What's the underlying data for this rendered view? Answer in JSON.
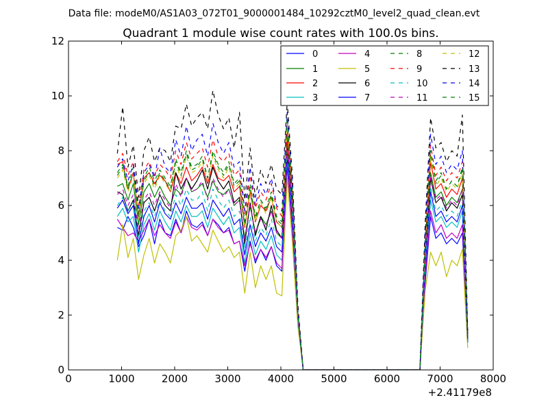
{
  "figure": {
    "suptitle": "Data file: modeM0/AS1A03_072T01_9000001484_10292cztM0_level2_quad_clean.evt"
  },
  "chart_data": {
    "type": "line",
    "title": "Quadrant 1 module wise count rates with 100.0s bins.",
    "xlabel": "",
    "ylabel": "",
    "x_offset_label": "+2.41179e8",
    "xlim": [
      0,
      8000
    ],
    "ylim": [
      0,
      12
    ],
    "xticks": [
      0,
      1000,
      2000,
      3000,
      4000,
      5000,
      6000,
      7000,
      8000
    ],
    "xtick_labels": [
      "0",
      "1000",
      "2000",
      "3000",
      "4000",
      "5000",
      "6000",
      "7000",
      "8000"
    ],
    "yticks": [
      0,
      2,
      4,
      6,
      8,
      10,
      12
    ],
    "ytick_labels": [
      "0",
      "2",
      "4",
      "6",
      "8",
      "10",
      "12"
    ],
    "legend_location": "top-right",
    "legend_columns": 4,
    "x": [
      920,
      1020,
      1120,
      1220,
      1320,
      1420,
      1520,
      1620,
      1720,
      1820,
      1920,
      2020,
      2120,
      2220,
      2320,
      2420,
      2520,
      2620,
      2720,
      2820,
      2920,
      3020,
      3120,
      3220,
      3320,
      3420,
      3520,
      3620,
      3720,
      3820,
      3920,
      4020,
      4120,
      4220,
      4320,
      4420,
      4520,
      4620,
      4720,
      4820,
      4920,
      5020,
      5120,
      5220,
      5320,
      5420,
      5520,
      5620,
      5720,
      5820,
      5920,
      6020,
      6120,
      6220,
      6320,
      6420,
      6520,
      6620,
      6720,
      6820,
      6920,
      7020,
      7120,
      7220,
      7320,
      7420,
      7520
    ],
    "series": [
      {
        "name": "0",
        "color": "#0000ff",
        "dash": false,
        "values": [
          5.2,
          5.1,
          5.6,
          5.2,
          4.5,
          4.9,
          5.5,
          4.6,
          5.5,
          5.0,
          4.9,
          5.5,
          5.0,
          5.8,
          5.3,
          5.2,
          5.4,
          4.9,
          5.5,
          5.3,
          5.0,
          5.2,
          4.6,
          4.7,
          3.6,
          4.7,
          3.9,
          4.4,
          4.0,
          4.5,
          3.8,
          3.6,
          7.5,
          5.0,
          1.8,
          0.0,
          0.0,
          0.0,
          0.0,
          0.0,
          0.0,
          0.0,
          0.0,
          0.0,
          0.0,
          0.0,
          0.0,
          0.0,
          0.0,
          0.0,
          0.0,
          0.0,
          0.0,
          0.0,
          0.0,
          0.0,
          0.0,
          0.0,
          3.2,
          5.6,
          4.8,
          5.0,
          4.6,
          4.8,
          4.6,
          5.0,
          1.0
        ]
      },
      {
        "name": "1",
        "color": "#008000",
        "dash": false,
        "values": [
          6.7,
          6.8,
          6.2,
          6.8,
          5.3,
          6.5,
          6.8,
          6.3,
          6.7,
          6.3,
          6.0,
          6.6,
          6.4,
          7.0,
          6.5,
          6.6,
          6.8,
          6.3,
          6.9,
          6.5,
          6.4,
          6.6,
          6.0,
          6.2,
          4.8,
          6.0,
          5.0,
          5.6,
          5.3,
          5.8,
          5.0,
          4.8,
          8.4,
          6.0,
          2.0,
          0.0,
          0.0,
          0.0,
          0.0,
          0.0,
          0.0,
          0.0,
          0.0,
          0.0,
          0.0,
          0.0,
          0.0,
          0.0,
          0.0,
          0.0,
          0.0,
          0.0,
          0.0,
          0.0,
          0.0,
          0.0,
          0.0,
          0.0,
          4.2,
          7.2,
          6.3,
          6.5,
          6.0,
          6.3,
          6.1,
          6.6,
          1.2
        ]
      },
      {
        "name": "2",
        "color": "#ff0000",
        "dash": false,
        "values": [
          7.5,
          7.6,
          6.6,
          7.2,
          5.6,
          7.0,
          7.2,
          6.8,
          7.1,
          6.9,
          6.5,
          7.2,
          6.8,
          7.4,
          6.9,
          7.1,
          7.4,
          6.8,
          7.5,
          7.0,
          6.9,
          7.1,
          6.5,
          6.7,
          5.2,
          6.5,
          5.4,
          6.0,
          5.8,
          6.3,
          5.4,
          5.2,
          8.6,
          6.2,
          2.1,
          0.0,
          0.0,
          0.0,
          0.0,
          0.0,
          0.0,
          0.0,
          0.0,
          0.0,
          0.0,
          0.0,
          0.0,
          0.0,
          0.0,
          0.0,
          0.0,
          0.0,
          0.0,
          0.0,
          0.0,
          0.0,
          0.0,
          0.0,
          4.4,
          7.6,
          6.6,
          6.8,
          6.3,
          6.6,
          6.4,
          7.0,
          1.2
        ]
      },
      {
        "name": "3",
        "color": "#00bfbf",
        "dash": false,
        "values": [
          5.6,
          5.9,
          5.4,
          5.6,
          4.3,
          5.3,
          5.7,
          5.1,
          5.8,
          5.4,
          5.1,
          5.8,
          5.4,
          6.0,
          5.6,
          5.6,
          5.8,
          5.2,
          5.9,
          5.6,
          5.3,
          5.6,
          5.0,
          5.2,
          3.9,
          5.0,
          4.2,
          4.7,
          4.4,
          4.9,
          4.2,
          4.0,
          7.6,
          5.2,
          1.8,
          0.0,
          0.0,
          0.0,
          0.0,
          0.0,
          0.0,
          0.0,
          0.0,
          0.0,
          0.0,
          0.0,
          0.0,
          0.0,
          0.0,
          0.0,
          0.0,
          0.0,
          0.0,
          0.0,
          0.0,
          0.0,
          0.0,
          0.0,
          3.6,
          6.2,
          5.4,
          5.6,
          5.2,
          5.4,
          5.2,
          5.8,
          1.0
        ]
      },
      {
        "name": "4",
        "color": "#bf00bf",
        "dash": false,
        "values": [
          5.5,
          5.2,
          4.9,
          5.0,
          4.7,
          5.1,
          5.5,
          4.9,
          5.3,
          5.0,
          4.8,
          5.4,
          5.0,
          5.6,
          5.2,
          5.1,
          5.3,
          4.9,
          5.5,
          5.2,
          5.0,
          5.1,
          4.6,
          4.7,
          3.8,
          4.6,
          4.0,
          4.4,
          4.1,
          4.5,
          3.9,
          3.7,
          7.4,
          5.0,
          1.8,
          0.0,
          0.0,
          0.0,
          0.0,
          0.0,
          0.0,
          0.0,
          0.0,
          0.0,
          0.0,
          0.0,
          0.0,
          0.0,
          0.0,
          0.0,
          0.0,
          0.0,
          0.0,
          0.0,
          0.0,
          0.0,
          0.0,
          0.0,
          3.4,
          5.8,
          5.0,
          5.3,
          4.8,
          5.0,
          4.8,
          5.3,
          1.0
        ]
      },
      {
        "name": "5",
        "color": "#bfbf00",
        "dash": false,
        "values": [
          4.0,
          5.3,
          4.1,
          4.8,
          3.3,
          4.2,
          4.8,
          3.9,
          4.6,
          4.3,
          3.9,
          4.9,
          5.1,
          5.6,
          4.7,
          4.9,
          4.6,
          4.3,
          5.1,
          4.7,
          4.3,
          4.5,
          4.1,
          4.3,
          2.8,
          4.3,
          3.0,
          3.8,
          3.3,
          3.8,
          2.8,
          2.7,
          7.0,
          4.6,
          1.6,
          0.0,
          0.0,
          0.0,
          0.0,
          0.0,
          0.0,
          0.0,
          0.0,
          0.0,
          0.0,
          0.0,
          0.0,
          0.0,
          0.0,
          0.0,
          0.0,
          0.0,
          0.0,
          0.0,
          0.0,
          0.0,
          0.0,
          0.0,
          2.9,
          4.3,
          3.8,
          4.3,
          3.4,
          4.0,
          3.8,
          4.4,
          0.8
        ]
      },
      {
        "name": "6",
        "color": "#000000",
        "dash": false,
        "values": [
          6.5,
          6.4,
          5.8,
          6.2,
          4.9,
          6.1,
          6.3,
          5.8,
          6.4,
          6.0,
          5.8,
          7.2,
          6.6,
          7.0,
          6.6,
          6.9,
          7.3,
          6.6,
          7.4,
          6.9,
          6.6,
          6.9,
          6.1,
          6.3,
          4.6,
          6.1,
          4.9,
          5.6,
          5.1,
          6.0,
          5.1,
          4.8,
          8.1,
          6.0,
          2.0,
          0.0,
          0.0,
          0.0,
          0.0,
          0.0,
          0.0,
          0.0,
          0.0,
          0.0,
          0.0,
          0.0,
          0.0,
          0.0,
          0.0,
          0.0,
          0.0,
          0.0,
          0.0,
          0.0,
          0.0,
          0.0,
          0.0,
          0.0,
          4.0,
          7.0,
          6.1,
          6.3,
          5.8,
          6.1,
          5.9,
          6.4,
          1.1
        ]
      },
      {
        "name": "7",
        "color": "#0000ff",
        "dash": false,
        "values": [
          5.9,
          6.2,
          5.7,
          6.0,
          4.6,
          5.6,
          6.0,
          5.4,
          6.1,
          5.7,
          5.5,
          6.1,
          5.7,
          6.3,
          5.9,
          5.9,
          6.1,
          5.5,
          6.2,
          5.9,
          5.6,
          5.9,
          5.3,
          5.5,
          4.2,
          5.3,
          4.5,
          5.0,
          4.7,
          5.2,
          4.5,
          4.3,
          7.8,
          5.4,
          1.9,
          0.0,
          0.0,
          0.0,
          0.0,
          0.0,
          0.0,
          0.0,
          0.0,
          0.0,
          0.0,
          0.0,
          0.0,
          0.0,
          0.0,
          0.0,
          0.0,
          0.0,
          0.0,
          0.0,
          0.0,
          0.0,
          0.0,
          0.0,
          3.8,
          6.5,
          5.6,
          5.8,
          5.4,
          5.6,
          5.4,
          6.0,
          1.0
        ]
      },
      {
        "name": "8",
        "color": "#008000",
        "dash": true,
        "values": [
          7.2,
          7.5,
          6.7,
          7.4,
          5.7,
          7.0,
          7.4,
          6.9,
          7.3,
          7.0,
          6.7,
          7.7,
          7.2,
          8.0,
          7.4,
          7.5,
          7.8,
          7.0,
          8.0,
          7.5,
          7.2,
          7.6,
          6.8,
          7.0,
          5.4,
          6.8,
          5.6,
          6.2,
          5.9,
          6.5,
          5.6,
          5.4,
          8.8,
          6.4,
          2.1,
          0.0,
          0.0,
          0.0,
          0.0,
          0.0,
          0.0,
          0.0,
          0.0,
          0.0,
          0.0,
          0.0,
          0.0,
          0.0,
          0.0,
          0.0,
          0.0,
          0.0,
          0.0,
          0.0,
          0.0,
          0.0,
          0.0,
          0.0,
          4.6,
          7.9,
          6.8,
          7.1,
          6.6,
          6.9,
          6.7,
          7.3,
          1.2
        ]
      },
      {
        "name": "9",
        "color": "#ff0000",
        "dash": true,
        "values": [
          7.6,
          7.9,
          7.1,
          7.6,
          6.0,
          7.3,
          7.6,
          7.1,
          7.5,
          7.3,
          7.0,
          8.0,
          7.5,
          8.3,
          7.7,
          7.9,
          8.1,
          7.4,
          8.4,
          7.8,
          7.6,
          7.9,
          7.1,
          7.3,
          5.7,
          7.1,
          5.9,
          6.5,
          6.2,
          6.8,
          5.9,
          5.6,
          9.0,
          6.6,
          2.2,
          0.0,
          0.0,
          0.0,
          0.0,
          0.0,
          0.0,
          0.0,
          0.0,
          0.0,
          0.0,
          0.0,
          0.0,
          0.0,
          0.0,
          0.0,
          0.0,
          0.0,
          0.0,
          0.0,
          0.0,
          0.0,
          0.0,
          0.0,
          4.8,
          8.2,
          7.1,
          7.4,
          6.9,
          7.2,
          7.0,
          7.6,
          1.2
        ]
      },
      {
        "name": "10",
        "color": "#00bfbf",
        "dash": true,
        "values": [
          6.0,
          6.3,
          5.8,
          6.1,
          4.8,
          5.8,
          6.1,
          5.6,
          6.2,
          5.8,
          5.6,
          6.4,
          6.0,
          6.6,
          6.2,
          6.2,
          6.5,
          5.8,
          6.6,
          6.2,
          5.9,
          6.2,
          5.6,
          5.8,
          4.4,
          5.6,
          4.7,
          5.2,
          4.9,
          5.5,
          4.7,
          4.5,
          8.0,
          5.6,
          1.9,
          0.0,
          0.0,
          0.0,
          0.0,
          0.0,
          0.0,
          0.0,
          0.0,
          0.0,
          0.0,
          0.0,
          0.0,
          0.0,
          0.0,
          0.0,
          0.0,
          0.0,
          0.0,
          0.0,
          0.0,
          0.0,
          0.0,
          0.0,
          3.9,
          6.7,
          5.8,
          6.0,
          5.6,
          5.8,
          5.6,
          6.2,
          1.0
        ]
      },
      {
        "name": "11",
        "color": "#bf00bf",
        "dash": true,
        "values": [
          6.4,
          6.6,
          6.0,
          6.4,
          5.1,
          6.2,
          6.5,
          6.0,
          6.5,
          6.2,
          5.9,
          6.8,
          6.3,
          7.0,
          6.5,
          6.6,
          6.9,
          6.2,
          7.0,
          6.6,
          6.3,
          6.6,
          6.0,
          6.2,
          4.7,
          6.0,
          5.0,
          5.5,
          5.2,
          5.8,
          5.0,
          4.8,
          8.3,
          5.8,
          2.0,
          0.0,
          0.0,
          0.0,
          0.0,
          0.0,
          0.0,
          0.0,
          0.0,
          0.0,
          0.0,
          0.0,
          0.0,
          0.0,
          0.0,
          0.0,
          0.0,
          0.0,
          0.0,
          0.0,
          0.0,
          0.0,
          0.0,
          0.0,
          4.1,
          7.1,
          6.2,
          6.4,
          5.9,
          6.2,
          6.0,
          6.6,
          1.1
        ]
      },
      {
        "name": "12",
        "color": "#bfbf00",
        "dash": true,
        "values": [
          7.0,
          7.3,
          6.5,
          7.1,
          5.5,
          6.8,
          7.1,
          6.6,
          7.1,
          6.8,
          6.5,
          7.5,
          7.0,
          7.8,
          7.2,
          7.3,
          7.6,
          6.9,
          7.8,
          7.3,
          7.0,
          7.4,
          6.6,
          6.8,
          5.2,
          6.6,
          5.4,
          6.1,
          5.7,
          6.3,
          5.4,
          5.2,
          8.9,
          6.3,
          2.1,
          0.0,
          0.0,
          0.0,
          0.0,
          0.0,
          0.0,
          0.0,
          0.0,
          0.0,
          0.0,
          0.0,
          0.0,
          0.0,
          0.0,
          0.0,
          0.0,
          0.0,
          0.0,
          0.0,
          0.0,
          0.0,
          0.0,
          0.0,
          4.5,
          7.8,
          6.7,
          7.0,
          6.5,
          6.8,
          6.6,
          7.2,
          1.2
        ]
      },
      {
        "name": "13",
        "color": "#000000",
        "dash": true,
        "values": [
          7.9,
          9.6,
          7.4,
          8.2,
          6.3,
          8.0,
          8.5,
          7.6,
          8.1,
          8.0,
          7.6,
          8.9,
          8.8,
          9.7,
          8.9,
          9.2,
          9.4,
          8.8,
          10.2,
          9.3,
          8.8,
          9.2,
          8.1,
          9.4,
          6.2,
          8.1,
          6.3,
          7.3,
          6.8,
          7.5,
          6.6,
          6.4,
          9.8,
          7.0,
          2.4,
          0.0,
          0.0,
          0.0,
          0.0,
          0.0,
          0.0,
          0.0,
          0.0,
          0.0,
          0.0,
          0.0,
          0.0,
          0.0,
          0.0,
          0.0,
          0.0,
          0.0,
          0.0,
          0.0,
          0.0,
          0.0,
          0.0,
          0.0,
          5.4,
          9.2,
          8.1,
          8.3,
          7.6,
          8.0,
          7.8,
          9.3,
          1.4
        ]
      },
      {
        "name": "14",
        "color": "#0000ff",
        "dash": true,
        "values": [
          7.4,
          7.7,
          6.9,
          7.5,
          5.9,
          7.2,
          7.5,
          7.0,
          8.1,
          7.4,
          7.2,
          8.4,
          7.8,
          8.9,
          8.0,
          8.4,
          8.6,
          7.8,
          9.0,
          8.3,
          7.9,
          8.3,
          7.4,
          7.6,
          5.8,
          7.4,
          6.0,
          6.8,
          6.4,
          7.0,
          6.0,
          5.8,
          9.4,
          6.7,
          2.2,
          0.0,
          0.0,
          0.0,
          0.0,
          0.0,
          0.0,
          0.0,
          0.0,
          0.0,
          0.0,
          0.0,
          0.0,
          0.0,
          0.0,
          0.0,
          0.0,
          0.0,
          0.0,
          0.0,
          0.0,
          0.0,
          0.0,
          0.0,
          5.0,
          8.6,
          7.5,
          7.8,
          7.2,
          7.5,
          7.3,
          8.0,
          1.3
        ]
      },
      {
        "name": "15",
        "color": "#008000",
        "dash": true,
        "values": [
          7.1,
          7.4,
          6.6,
          7.2,
          5.6,
          6.9,
          7.2,
          6.7,
          7.2,
          6.9,
          6.6,
          7.6,
          7.1,
          7.9,
          7.3,
          7.4,
          7.7,
          7.0,
          7.9,
          7.4,
          7.1,
          7.5,
          6.7,
          6.9,
          5.3,
          6.7,
          5.5,
          6.2,
          5.8,
          6.4,
          5.5,
          5.3,
          9.2,
          6.4,
          2.1,
          0.0,
          0.0,
          0.0,
          0.0,
          0.0,
          0.0,
          0.0,
          0.0,
          0.0,
          0.0,
          0.0,
          0.0,
          0.0,
          0.0,
          0.0,
          0.0,
          0.0,
          0.0,
          0.0,
          0.0,
          0.0,
          0.0,
          0.0,
          4.6,
          8.0,
          6.9,
          7.2,
          6.6,
          6.9,
          6.7,
          7.4,
          1.2
        ]
      }
    ]
  }
}
